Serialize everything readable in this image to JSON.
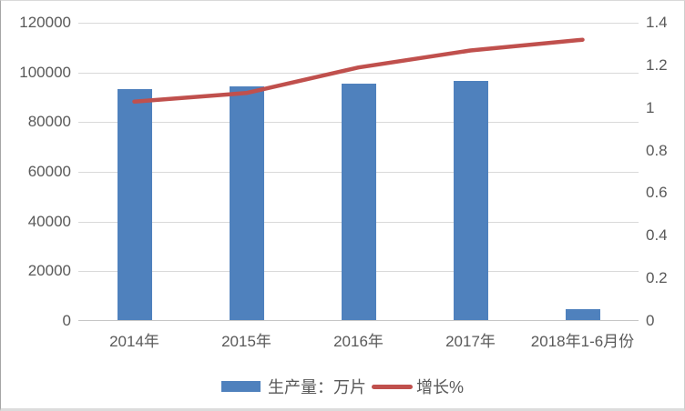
{
  "chart_data": {
    "type": "combo",
    "categories": [
      "2014年",
      "2015年",
      "2016年",
      "2017年",
      "2018年1-6月份"
    ],
    "series": [
      {
        "name": "生产量：万片",
        "type": "bar",
        "axis": "left",
        "color": "#4F81BD",
        "values": [
          93000,
          94000,
          95300,
          96200,
          4500
        ]
      },
      {
        "name": "增长%",
        "type": "line",
        "axis": "right",
        "color": "#C0504D",
        "values": [
          1.03,
          1.07,
          1.19,
          1.27,
          1.32
        ]
      }
    ],
    "title": "",
    "xlabel": "",
    "ylabel_left": "",
    "ylabel_right": "",
    "left_axis": {
      "min": 0,
      "max": 120000,
      "step": 20000,
      "tick_labels": [
        "120000",
        "100000",
        "80000",
        "60000",
        "40000",
        "20000",
        "0"
      ]
    },
    "right_axis": {
      "min": 0,
      "max": 1.4,
      "step": 0.2,
      "tick_labels": [
        "1.4",
        "1.2",
        "1",
        "0.8",
        "0.6",
        "0.4",
        "0.2",
        "0"
      ]
    },
    "grid": true,
    "legend_position": "bottom"
  },
  "legend": {
    "items": [
      {
        "label": "生产量：万片",
        "swatch": "bar",
        "color": "#4F81BD"
      },
      {
        "label": "增长%",
        "swatch": "line",
        "color": "#C0504D"
      }
    ]
  },
  "colors": {
    "bar": "#4F81BD",
    "line": "#C0504D",
    "grid": "#D9D9D9",
    "axis_line": "#C6C6C6",
    "text": "#595959"
  }
}
